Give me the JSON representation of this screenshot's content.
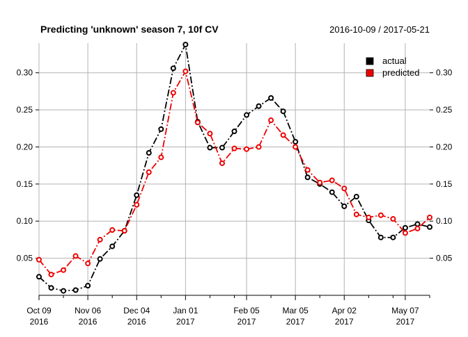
{
  "chart_data": {
    "type": "line",
    "title": "Predicting 'unknown' season 7, 10f CV",
    "date_range_label": "2016-10-09 / 2017-05-21",
    "xlabel": "",
    "ylabel": "",
    "x_range": [
      "2016-10-09",
      "2017-05-21"
    ],
    "ylim": [
      0.0,
      0.34
    ],
    "y_ticks": [
      "0.05",
      "0.10",
      "0.15",
      "0.20",
      "0.25",
      "0.30"
    ],
    "y_tick_values": [
      0.05,
      0.1,
      0.15,
      0.2,
      0.25,
      0.3
    ],
    "x_ticks": [
      {
        "date": "2016-10-09",
        "line1": "Oct 09",
        "line2": "2016"
      },
      {
        "date": "2016-11-06",
        "line1": "Nov 06",
        "line2": "2016"
      },
      {
        "date": "2016-12-04",
        "line1": "Dec 04",
        "line2": "2016"
      },
      {
        "date": "2017-01-01",
        "line1": "Jan 01",
        "line2": "2017"
      },
      {
        "date": "2017-02-05",
        "line1": "Feb 05",
        "line2": "2017"
      },
      {
        "date": "2017-03-05",
        "line1": "Mar 05",
        "line2": "2017"
      },
      {
        "date": "2017-04-02",
        "line1": "Apr 02",
        "line2": "2017"
      },
      {
        "date": "2017-05-07",
        "line1": "May 07",
        "line2": "2017"
      }
    ],
    "minor_x_ticks": [
      "2016-10-23",
      "2016-11-20",
      "2016-12-18",
      "2017-01-15",
      "2017-01-29",
      "2017-02-19",
      "2017-03-19",
      "2017-04-16",
      "2017-04-30",
      "2017-05-21"
    ],
    "grid": true,
    "legend_position": "top-right",
    "series": [
      {
        "name": "actual",
        "color": "#000000",
        "style": "dot-dash",
        "x": [
          "2016-10-09",
          "2016-10-16",
          "2016-10-23",
          "2016-10-30",
          "2016-11-06",
          "2016-11-13",
          "2016-11-20",
          "2016-11-27",
          "2016-12-04",
          "2016-12-11",
          "2016-12-18",
          "2016-12-25",
          "2017-01-01",
          "2017-01-08",
          "2017-01-15",
          "2017-01-22",
          "2017-01-29",
          "2017-02-05",
          "2017-02-12",
          "2017-02-19",
          "2017-02-26",
          "2017-03-05",
          "2017-03-12",
          "2017-03-19",
          "2017-03-26",
          "2017-04-02",
          "2017-04-09",
          "2017-04-16",
          "2017-04-23",
          "2017-04-30",
          "2017-05-07",
          "2017-05-14",
          "2017-05-21"
        ],
        "values": [
          0.025,
          0.01,
          0.006,
          0.007,
          0.013,
          0.049,
          0.066,
          0.087,
          0.135,
          0.192,
          0.224,
          0.306,
          0.338,
          0.234,
          0.199,
          0.199,
          0.221,
          0.243,
          0.255,
          0.266,
          0.248,
          0.207,
          0.159,
          0.15,
          0.139,
          0.12,
          0.133,
          0.101,
          0.078,
          0.078,
          0.091,
          0.096,
          0.092
        ]
      },
      {
        "name": "predicted",
        "color": "#ee0000",
        "style": "dot-dash",
        "x": [
          "2016-10-09",
          "2016-10-16",
          "2016-10-23",
          "2016-10-30",
          "2016-11-06",
          "2016-11-13",
          "2016-11-20",
          "2016-11-27",
          "2016-12-04",
          "2016-12-11",
          "2016-12-18",
          "2016-12-25",
          "2017-01-01",
          "2017-01-08",
          "2017-01-15",
          "2017-01-22",
          "2017-01-29",
          "2017-02-05",
          "2017-02-12",
          "2017-02-19",
          "2017-02-26",
          "2017-03-05",
          "2017-03-12",
          "2017-03-19",
          "2017-03-26",
          "2017-04-02",
          "2017-04-09",
          "2017-04-16",
          "2017-04-23",
          "2017-04-30",
          "2017-05-07",
          "2017-05-14",
          "2017-05-21"
        ],
        "values": [
          0.048,
          0.028,
          0.034,
          0.053,
          0.043,
          0.075,
          0.088,
          0.087,
          0.122,
          0.166,
          0.186,
          0.273,
          0.302,
          0.233,
          0.218,
          0.178,
          0.198,
          0.197,
          0.2,
          0.236,
          0.216,
          0.2,
          0.169,
          0.152,
          0.155,
          0.144,
          0.109,
          0.105,
          0.108,
          0.103,
          0.084,
          0.09,
          0.105
        ]
      }
    ]
  }
}
